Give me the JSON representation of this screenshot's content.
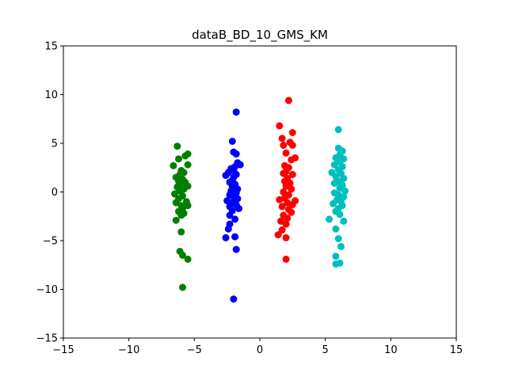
{
  "chart_data": {
    "type": "scatter",
    "title": "dataB_BD_10_GMS_KM",
    "xlabel": "",
    "ylabel": "",
    "xlim": [
      -15,
      15
    ],
    "ylim": [
      -15,
      15
    ],
    "x_ticks": [
      -15,
      -10,
      -5,
      0,
      5,
      10,
      15
    ],
    "y_ticks": [
      -15,
      -10,
      -5,
      0,
      5,
      10,
      15
    ],
    "x_tick_labels": [
      "−15",
      "−10",
      "−5",
      "0",
      "5",
      "10",
      "15"
    ],
    "y_tick_labels": [
      "−15",
      "−10",
      "−5",
      "0",
      "5",
      "10",
      "15"
    ],
    "grid": false,
    "series": [
      {
        "color": "#008000",
        "points": [
          [
            -6.3,
            4.7
          ],
          [
            -5.5,
            3.9
          ],
          [
            -5.7,
            3.7
          ],
          [
            -6.2,
            3.4
          ],
          [
            -6.6,
            2.7
          ],
          [
            -5.5,
            2.8
          ],
          [
            -6.0,
            2.2
          ],
          [
            -5.8,
            2.0
          ],
          [
            -6.1,
            1.8
          ],
          [
            -6.4,
            1.5
          ],
          [
            -5.9,
            1.3
          ],
          [
            -6.2,
            1.1
          ],
          [
            -5.7,
            1.0
          ],
          [
            -6.0,
            0.8
          ],
          [
            -6.3,
            0.5
          ],
          [
            -5.8,
            0.3
          ],
          [
            -5.5,
            0.6
          ],
          [
            -6.1,
            0.1
          ],
          [
            -6.5,
            -0.2
          ],
          [
            -5.9,
            -0.4
          ],
          [
            -6.2,
            -0.7
          ],
          [
            -5.6,
            -1.0
          ],
          [
            -6.4,
            -1.1
          ],
          [
            -6.0,
            -1.4
          ],
          [
            -5.5,
            -1.4
          ],
          [
            -5.9,
            -1.7
          ],
          [
            -6.2,
            -2.0
          ],
          [
            -5.8,
            -2.2
          ],
          [
            -6.0,
            -2.4
          ],
          [
            -6.4,
            -2.9
          ],
          [
            -6.0,
            -4.1
          ],
          [
            -6.1,
            -6.1
          ],
          [
            -5.9,
            -6.5
          ],
          [
            -5.5,
            -6.9
          ],
          [
            -5.9,
            -9.8
          ]
        ]
      },
      {
        "color": "#0000ff",
        "points": [
          [
            -1.8,
            8.2
          ],
          [
            -2.1,
            5.2
          ],
          [
            -2.0,
            4.1
          ],
          [
            -1.8,
            3.9
          ],
          [
            -1.7,
            3.0
          ],
          [
            -1.5,
            2.8
          ],
          [
            -1.9,
            2.6
          ],
          [
            -2.2,
            2.4
          ],
          [
            -2.0,
            2.2
          ],
          [
            -2.4,
            2.0
          ],
          [
            -2.6,
            1.7
          ],
          [
            -1.8,
            1.8
          ],
          [
            -2.0,
            1.5
          ],
          [
            -2.1,
            1.2
          ],
          [
            -2.3,
            1.0
          ],
          [
            -1.9,
            0.8
          ],
          [
            -2.1,
            0.6
          ],
          [
            -1.7,
            0.3
          ],
          [
            -2.2,
            0.1
          ],
          [
            -1.8,
            -0.1
          ],
          [
            -2.3,
            -0.3
          ],
          [
            -2.0,
            -0.5
          ],
          [
            -1.7,
            -0.7
          ],
          [
            -2.5,
            -0.9
          ],
          [
            -2.1,
            -1.1
          ],
          [
            -1.8,
            -1.3
          ],
          [
            -2.3,
            -1.5
          ],
          [
            -1.6,
            -1.7
          ],
          [
            -2.1,
            -1.9
          ],
          [
            -2.3,
            -2.4
          ],
          [
            -1.9,
            -2.8
          ],
          [
            -2.3,
            -3.3
          ],
          [
            -2.4,
            -3.8
          ],
          [
            -1.9,
            -4.6
          ],
          [
            -2.6,
            -4.7
          ],
          [
            -1.8,
            -5.9
          ],
          [
            -2.0,
            -11.0
          ]
        ]
      },
      {
        "color": "#ff0000",
        "points": [
          [
            2.2,
            9.4
          ],
          [
            1.5,
            6.8
          ],
          [
            2.5,
            6.1
          ],
          [
            1.7,
            5.5
          ],
          [
            2.3,
            5.1
          ],
          [
            1.8,
            4.8
          ],
          [
            2.5,
            4.8
          ],
          [
            2.0,
            4.0
          ],
          [
            2.4,
            3.3
          ],
          [
            2.7,
            3.5
          ],
          [
            1.9,
            2.7
          ],
          [
            2.2,
            2.5
          ],
          [
            2.0,
            2.1
          ],
          [
            1.8,
            1.9
          ],
          [
            2.5,
            1.8
          ],
          [
            2.1,
            1.4
          ],
          [
            1.9,
            1.1
          ],
          [
            2.3,
            0.9
          ],
          [
            2.0,
            0.6
          ],
          [
            2.4,
            0.3
          ],
          [
            1.8,
            0.0
          ],
          [
            2.2,
            -0.3
          ],
          [
            1.9,
            -0.6
          ],
          [
            1.5,
            -0.8
          ],
          [
            2.7,
            -0.9
          ],
          [
            2.1,
            -1.1
          ],
          [
            2.5,
            -1.3
          ],
          [
            1.7,
            -1.5
          ],
          [
            2.2,
            -1.8
          ],
          [
            2.4,
            -2.1
          ],
          [
            1.8,
            -2.4
          ],
          [
            2.1,
            -2.7
          ],
          [
            1.6,
            -3.0
          ],
          [
            2.0,
            -3.3
          ],
          [
            1.7,
            -3.9
          ],
          [
            1.4,
            -4.4
          ],
          [
            2.0,
            -4.7
          ],
          [
            2.0,
            -6.9
          ]
        ]
      },
      {
        "color": "#00bfbf",
        "points": [
          [
            6.0,
            6.4
          ],
          [
            6.0,
            4.5
          ],
          [
            6.3,
            4.2
          ],
          [
            6.1,
            3.8
          ],
          [
            5.8,
            3.5
          ],
          [
            6.4,
            3.4
          ],
          [
            6.1,
            3.1
          ],
          [
            5.7,
            2.8
          ],
          [
            6.3,
            2.6
          ],
          [
            6.0,
            2.3
          ],
          [
            5.5,
            2.0
          ],
          [
            6.2,
            1.9
          ],
          [
            5.8,
            1.6
          ],
          [
            6.4,
            1.4
          ],
          [
            6.0,
            1.1
          ],
          [
            5.7,
            0.9
          ],
          [
            6.3,
            0.7
          ],
          [
            6.1,
            0.4
          ],
          [
            6.5,
            0.1
          ],
          [
            5.7,
            -0.1
          ],
          [
            6.0,
            -0.3
          ],
          [
            6.4,
            -0.5
          ],
          [
            5.9,
            -0.8
          ],
          [
            6.2,
            -1.0
          ],
          [
            5.6,
            -1.2
          ],
          [
            6.3,
            -1.4
          ],
          [
            6.0,
            -1.7
          ],
          [
            5.8,
            -2.0
          ],
          [
            6.1,
            -2.3
          ],
          [
            5.3,
            -2.8
          ],
          [
            6.4,
            -3.0
          ],
          [
            5.8,
            -3.8
          ],
          [
            6.0,
            -4.8
          ],
          [
            6.2,
            -5.6
          ],
          [
            5.8,
            -6.6
          ],
          [
            5.8,
            -7.4
          ],
          [
            6.1,
            -7.3
          ]
        ]
      }
    ]
  }
}
